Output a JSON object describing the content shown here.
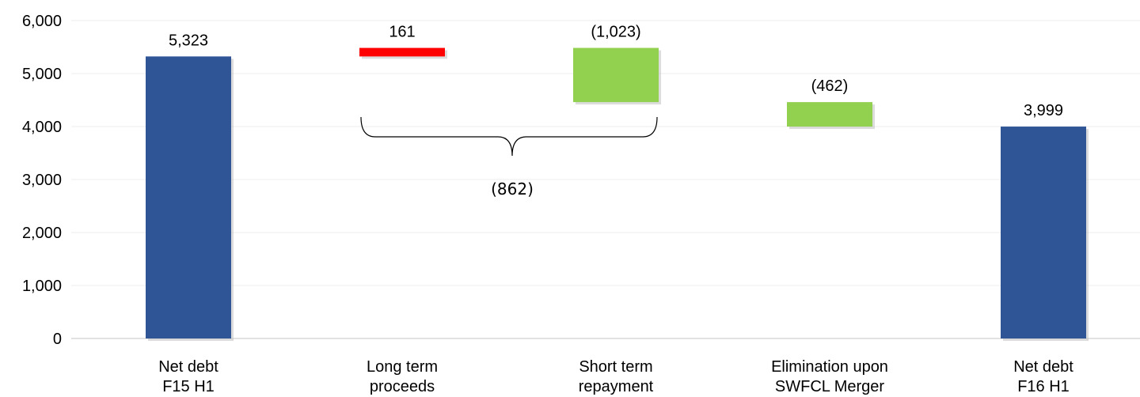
{
  "chart_data": {
    "type": "bar",
    "subtype": "waterfall",
    "categories": [
      [
        "Net debt",
        "F15 H1"
      ],
      [
        "Long term",
        "proceeds"
      ],
      [
        "Short term",
        "repayment"
      ],
      [
        "Elimination upon",
        "SWFCL Merger"
      ],
      [
        "Net debt",
        "F16 H1"
      ]
    ],
    "bars": [
      {
        "kind": "total",
        "start": 0,
        "end": 5323,
        "label": "5,323",
        "color": "#2F5597"
      },
      {
        "kind": "increase",
        "start": 5323,
        "end": 5484,
        "label": "161",
        "color": "#FF0000"
      },
      {
        "kind": "decrease",
        "start": 5484,
        "end": 4461,
        "label": "(1,023)",
        "color": "#92D050"
      },
      {
        "kind": "decrease",
        "start": 4461,
        "end": 3999,
        "label": "(462)",
        "color": "#92D050"
      },
      {
        "kind": "total",
        "start": 0,
        "end": 3999,
        "label": "3,999",
        "color": "#2F5597"
      }
    ],
    "yticks": [
      "0",
      "1,000",
      "2,000",
      "3,000",
      "4,000",
      "5,000",
      "6,000"
    ],
    "ylim": [
      0,
      6000
    ],
    "grid": true,
    "annotation": {
      "label": "(862)",
      "spans": [
        "Long term proceeds",
        "Short term repayment"
      ]
    }
  }
}
